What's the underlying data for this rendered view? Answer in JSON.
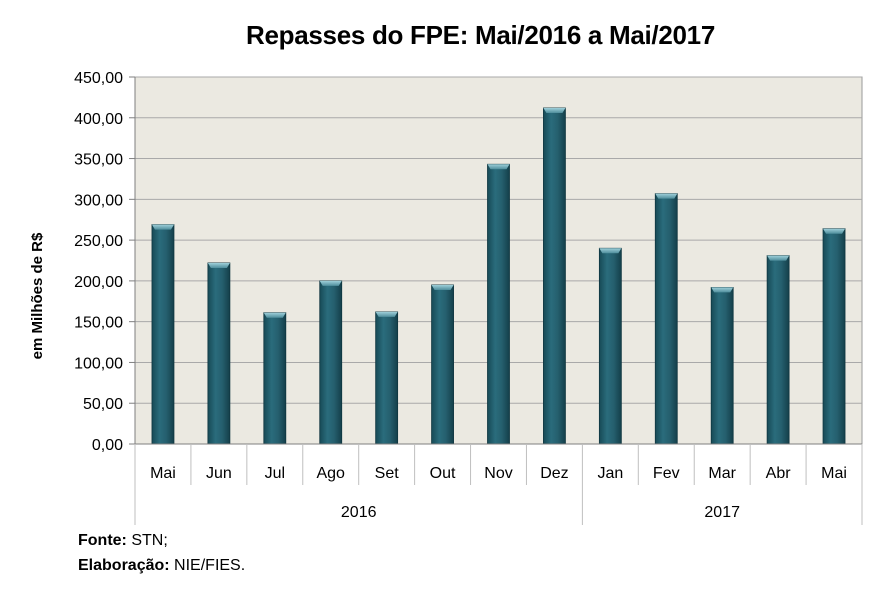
{
  "chart_data": {
    "type": "bar",
    "title": "Repasses do FPE: Mai/2016 a Mai/2017",
    "ylabel": "em Milhões de R$",
    "xlabel": "",
    "ylim": [
      0,
      450
    ],
    "yticks": [
      "0,00",
      "50,00",
      "100,00",
      "150,00",
      "200,00",
      "250,00",
      "300,00",
      "350,00",
      "400,00",
      "450,00"
    ],
    "ytick_values": [
      0,
      50,
      100,
      150,
      200,
      250,
      300,
      350,
      400,
      450
    ],
    "grid": true,
    "categories": [
      "Mai",
      "Jun",
      "Jul",
      "Ago",
      "Set",
      "Out",
      "Nov",
      "Dez",
      "Jan",
      "Fev",
      "Mar",
      "Abr",
      "Mai"
    ],
    "values": [
      269,
      222,
      161,
      200,
      162,
      195,
      343,
      412,
      240,
      307,
      192,
      231,
      264
    ],
    "groups": [
      {
        "label": "2016",
        "count": 8
      },
      {
        "label": "2017",
        "count": 5
      }
    ],
    "colors": {
      "bar": "#1f5f6e",
      "bar_top": "#6aaab8",
      "plot_bg": "#ebe9e1",
      "grid": "#c8c8c8"
    }
  },
  "footer": {
    "source_label": "Fonte:",
    "source_value": "STN;",
    "credit_label": "Elaboração:",
    "credit_value": "NIE/FIES."
  }
}
